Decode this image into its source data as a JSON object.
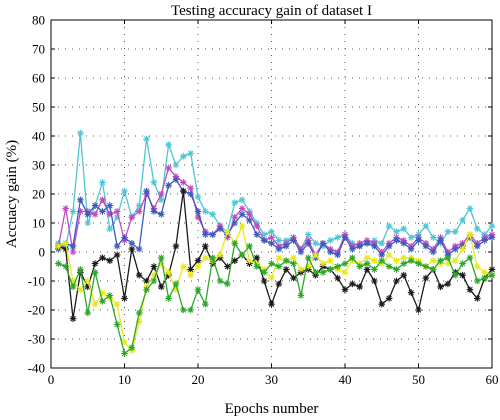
{
  "chart_data": {
    "type": "line",
    "title": "Testing accuracy gain of dataset I",
    "xlabel": "Epochs number",
    "ylabel": "Accuacy gain (%)",
    "xlim": [
      0,
      60
    ],
    "ylim": [
      -40,
      80
    ],
    "xticks": [
      0,
      10,
      20,
      30,
      40,
      50,
      60
    ],
    "yticks": [
      -40,
      -30,
      -20,
      -10,
      0,
      10,
      20,
      30,
      40,
      50,
      60,
      70,
      80
    ],
    "grid": true,
    "x": [
      1,
      2,
      3,
      4,
      5,
      6,
      7,
      8,
      9,
      10,
      11,
      12,
      13,
      14,
      15,
      16,
      17,
      18,
      19,
      20,
      21,
      22,
      23,
      24,
      25,
      26,
      27,
      28,
      29,
      30,
      31,
      32,
      33,
      34,
      35,
      36,
      37,
      38,
      39,
      40,
      41,
      42,
      43,
      44,
      45,
      46,
      47,
      48,
      49,
      50,
      51,
      52,
      53,
      54,
      55,
      56,
      57,
      58,
      59,
      60
    ],
    "series": [
      {
        "color": "#4fc6d4",
        "values": [
          3,
          2,
          14,
          41,
          10,
          16,
          24,
          8,
          12,
          21,
          12,
          16,
          39,
          24,
          18,
          37,
          30,
          33,
          34,
          19,
          14,
          13,
          9,
          7,
          17,
          18,
          14,
          10,
          6,
          7,
          4,
          4,
          5,
          1,
          6,
          3,
          2,
          4,
          5,
          6,
          3,
          2,
          3,
          4,
          3,
          9,
          7,
          8,
          5,
          6,
          9,
          5,
          3,
          7,
          7,
          11,
          15,
          8,
          6,
          9
        ]
      },
      {
        "color": "#c04bc0",
        "values": [
          2,
          15,
          0,
          14,
          14,
          13,
          18,
          13,
          14,
          4,
          12,
          14,
          20,
          15,
          20,
          29,
          26,
          24,
          22,
          12,
          7,
          6,
          9,
          5,
          12,
          15,
          13,
          9,
          4,
          5,
          2,
          3,
          5,
          1,
          4,
          -1,
          3,
          1,
          0,
          6,
          2,
          3,
          4,
          3,
          0,
          3,
          5,
          4,
          2,
          5,
          3,
          1,
          5,
          0,
          2,
          3,
          6,
          3,
          5,
          6
        ]
      },
      {
        "color": "#3b5bbf",
        "values": [
          1,
          3,
          2,
          18,
          13,
          16,
          14,
          16,
          2,
          5,
          3,
          1,
          21,
          14,
          13,
          23,
          25,
          21,
          20,
          14,
          6,
          6,
          8,
          6,
          10,
          13,
          11,
          6,
          4,
          3,
          1,
          2,
          4,
          0,
          3,
          -2,
          3,
          0,
          -1,
          5,
          1,
          2,
          3,
          2,
          -1,
          2,
          4,
          3,
          1,
          4,
          2,
          0,
          4,
          -1,
          1,
          2,
          5,
          2,
          4,
          5
        ]
      },
      {
        "color": "#1a1a1a",
        "values": [
          2,
          1,
          -23,
          -7,
          -12,
          -4,
          -2,
          -3,
          -1,
          -16,
          1,
          -8,
          -10,
          -5,
          -12,
          -8,
          2,
          21,
          -6,
          -3,
          2,
          -4,
          -2,
          -5,
          -3,
          -1,
          -4,
          -2,
          -10,
          -18,
          -11,
          -6,
          -9,
          -7,
          -6,
          -8,
          -5,
          -6,
          -9,
          -13,
          -11,
          -12,
          -6,
          -10,
          -18,
          -16,
          -10,
          -8,
          -14,
          -20,
          -9,
          -6,
          -12,
          -11,
          -7,
          -8,
          -13,
          -16,
          -9,
          -6
        ]
      },
      {
        "color": "#e8e820",
        "values": [
          2,
          3,
          -10,
          -13,
          -10,
          -18,
          -14,
          -16,
          -18,
          -31,
          -34,
          -24,
          -12,
          -8,
          -4,
          -7,
          -13,
          -5,
          -8,
          -5,
          -2,
          -3,
          -1,
          7,
          3,
          9,
          -3,
          -4,
          -6,
          -9,
          -2,
          -3,
          -2,
          -6,
          -5,
          -1,
          -4,
          -3,
          -6,
          -7,
          -3,
          -4,
          -2,
          -3,
          -4,
          -1,
          -3,
          -2,
          -2,
          -3,
          -5,
          -3,
          -4,
          -4,
          -3,
          1,
          6,
          -5,
          -7,
          -8
        ]
      },
      {
        "color": "#2aa82a",
        "values": [
          -4,
          -5,
          -12,
          -6,
          -21,
          -7,
          -17,
          -15,
          -25,
          -35,
          -33,
          -21,
          -13,
          -10,
          -2,
          -16,
          -11,
          -20,
          -20,
          -13,
          -18,
          -2,
          -10,
          -11,
          3,
          -1,
          2,
          -5,
          -7,
          -4,
          -5,
          -3,
          -4,
          -15,
          -2,
          -7,
          -7,
          -6,
          -5,
          -4,
          -2,
          -5,
          -4,
          -6,
          -3,
          -5,
          -6,
          -4,
          -3,
          -4,
          -5,
          -6,
          -3,
          -2,
          -8,
          -4,
          -2,
          -10,
          -9,
          -8
        ]
      }
    ]
  }
}
